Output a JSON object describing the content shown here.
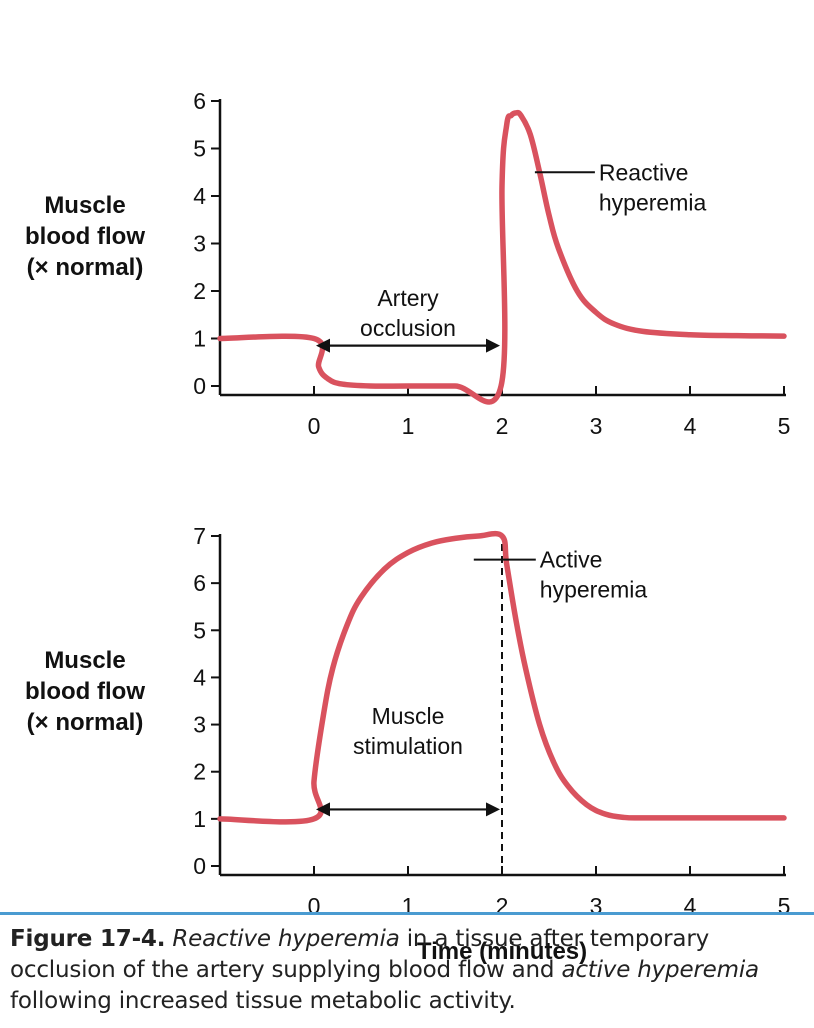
{
  "chart_data": [
    {
      "type": "line",
      "ylabel": [
        "Muscle",
        "blood flow",
        "(× normal)"
      ],
      "xlabel": "",
      "xlim": [
        -1,
        5
      ],
      "ylim": [
        0,
        6
      ],
      "xticks": [
        "0",
        "1",
        "2",
        "3",
        "4",
        "5"
      ],
      "yticks": [
        "0",
        "1",
        "2",
        "3",
        "4",
        "5",
        "6"
      ],
      "series": [
        {
          "color": "#d9525e",
          "x": [
            -1,
            0,
            0.05,
            0.15,
            0.3,
            0.6,
            1,
            1.5,
            1.99,
            2.0,
            2.05,
            2.1,
            2.15,
            2.2,
            2.3,
            2.4,
            2.5,
            2.6,
            2.8,
            3.0,
            3.2,
            3.5,
            4.0,
            4.5,
            5.0
          ],
          "y": [
            1,
            1,
            0.4,
            0.15,
            0.04,
            0.0,
            0.0,
            0.0,
            0.0,
            4.2,
            5.5,
            5.7,
            5.75,
            5.7,
            5.3,
            4.5,
            3.6,
            2.9,
            2.0,
            1.55,
            1.3,
            1.15,
            1.08,
            1.06,
            1.05
          ]
        }
      ],
      "annotations": [
        {
          "text": [
            "Artery",
            "occlusion"
          ],
          "from_x": 0,
          "to_x": 2,
          "y": 0.85
        },
        {
          "text": [
            "Reactive",
            "hyperemia"
          ],
          "x": 2.35,
          "y": 4.5
        }
      ]
    },
    {
      "type": "line",
      "ylabel": [
        "Muscle",
        "blood flow",
        "(× normal)"
      ],
      "xlabel": "Time (minutes)",
      "xlim": [
        -1,
        5
      ],
      "ylim": [
        0,
        7
      ],
      "xticks": [
        "0",
        "1",
        "2",
        "3",
        "4",
        "5"
      ],
      "yticks": [
        "0",
        "1",
        "2",
        "3",
        "4",
        "5",
        "6",
        "7"
      ],
      "series": [
        {
          "color": "#d9525e",
          "x": [
            -1,
            0,
            0.0,
            0.1,
            0.2,
            0.35,
            0.5,
            0.75,
            1.0,
            1.25,
            1.5,
            1.75,
            2.0,
            2.05,
            2.15,
            2.25,
            2.4,
            2.55,
            2.7,
            2.9,
            3.1,
            3.3,
            3.5,
            4.0,
            4.5,
            5.0
          ],
          "y": [
            1,
            1,
            1.8,
            3.2,
            4.2,
            5.1,
            5.7,
            6.3,
            6.65,
            6.85,
            6.95,
            7.0,
            7.0,
            6.4,
            5.2,
            4.2,
            3.0,
            2.2,
            1.7,
            1.3,
            1.1,
            1.03,
            1.02,
            1.02,
            1.02,
            1.02
          ]
        }
      ],
      "annotations": [
        {
          "text": [
            "Muscle",
            "stimulation"
          ],
          "from_x": 0,
          "to_x": 2,
          "y": 1.2
        },
        {
          "text": [
            "Active",
            "hyperemia"
          ],
          "x": 1.7,
          "y": 6.5
        },
        {
          "type": "vline",
          "x": 2,
          "style": "dashed"
        }
      ]
    }
  ],
  "caption": {
    "label": "Figure 17-4.",
    "parts": [
      {
        "text": " ",
        "italic": false
      },
      {
        "text": "Reactive hyperemia",
        "italic": true
      },
      {
        "text": " in a tissue after temporary occlusion of the artery supplying blood flow and ",
        "italic": false
      },
      {
        "text": "active hyperemia",
        "italic": true
      },
      {
        "text": " following increased tissue metabolic activity.",
        "italic": false
      }
    ]
  }
}
